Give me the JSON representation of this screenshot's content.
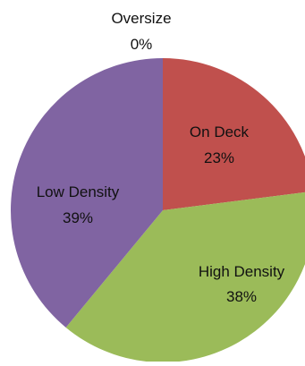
{
  "chart_data": {
    "type": "pie",
    "title": "",
    "slices": [
      {
        "label": "Oversize",
        "percent_label": "0%",
        "value": 0,
        "color": "#4F81BD"
      },
      {
        "label": "On Deck",
        "percent_label": "23%",
        "value": 23,
        "color": "#C0504D"
      },
      {
        "label": "High Density",
        "percent_label": "38%",
        "value": 38,
        "color": "#9BBB59"
      },
      {
        "label": "Low Density",
        "percent_label": "39%",
        "value": 39,
        "color": "#8064A2"
      }
    ]
  }
}
